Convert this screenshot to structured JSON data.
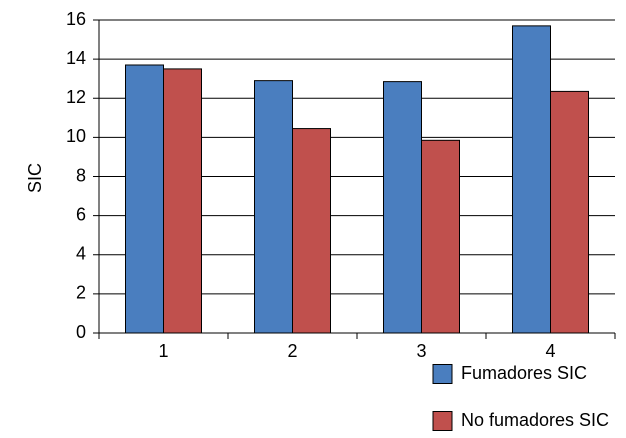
{
  "chart_data": {
    "type": "bar",
    "title": "",
    "xlabel": "",
    "ylabel": "SIC",
    "categories": [
      "1",
      "2",
      "3",
      "4"
    ],
    "ylim": [
      0,
      16
    ],
    "yticks": [
      0,
      2,
      4,
      6,
      8,
      10,
      12,
      14,
      16
    ],
    "grid": true,
    "legend_position": "bottom-right",
    "series": [
      {
        "name": "Fumadores SIC",
        "color": "#4a7ebf",
        "values": [
          13.7,
          12.9,
          12.85,
          15.7
        ]
      },
      {
        "name": "No fumadores SIC",
        "color": "#c0504d",
        "values": [
          13.5,
          10.45,
          9.85,
          12.35
        ]
      }
    ]
  }
}
